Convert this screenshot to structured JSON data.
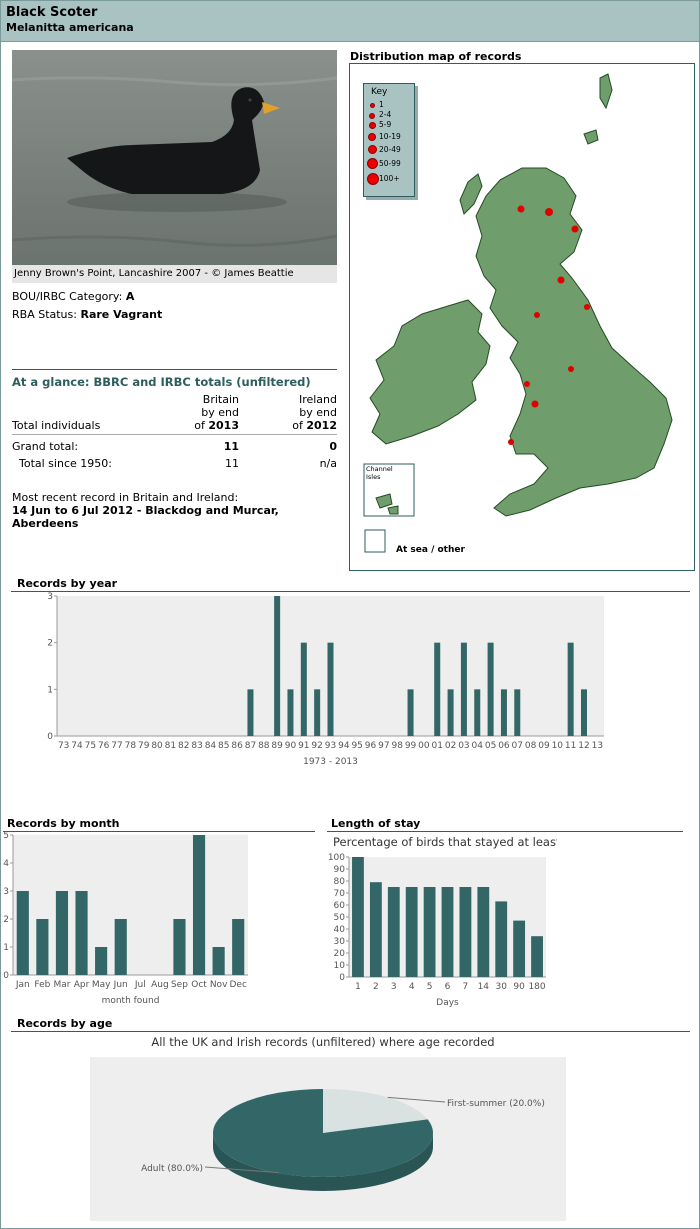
{
  "header": {
    "common_name": "Black Scoter",
    "scientific_name": "Melanitta americana"
  },
  "photo": {
    "caption": "Jenny Brown's Point, Lancashire 2007 - © James Beattie"
  },
  "category": {
    "label": "BOU/IRBC Category:",
    "value": "A"
  },
  "rba": {
    "label": "RBA Status:",
    "value": "Rare Vagrant"
  },
  "glance": {
    "title": "At a glance: BBRC and IRBC totals (unfiltered)",
    "col1": {
      "l1": "Britain",
      "l2": "by end",
      "l3": "of",
      "year": "2013"
    },
    "col2": {
      "l1": "Ireland",
      "l2": "by end",
      "l3": "of",
      "year": "2012"
    },
    "row_header": "Total individuals",
    "grand_label": "Grand total:",
    "grand_britain": "11",
    "grand_ireland": "0",
    "since_label": "Total since 1950:",
    "since_britain": "11",
    "since_ireland": "n/a",
    "recent_label": "Most recent record in Britain and Ireland:",
    "recent_value1": "14 Jun to 6 Jul 2012 - Blackdog and Murcar,",
    "recent_value2": "Aberdeens"
  },
  "map": {
    "title": "Distribution map of records",
    "key_title": "Key",
    "key_items": [
      "1",
      "2-4",
      "5-9",
      "10-19",
      "20-49",
      "50-99",
      "100+"
    ],
    "channel_label1": "Channel",
    "channel_label2": "Isles",
    "sea_label": "At sea / other",
    "land_color": "#6f9d6b",
    "record_color": "#e00000"
  },
  "chart_data": [
    {
      "id": "year",
      "type": "bar",
      "title": "Records by year",
      "xlabel": "1973 - 2013",
      "categories": [
        "73",
        "74",
        "75",
        "76",
        "77",
        "78",
        "79",
        "80",
        "81",
        "82",
        "83",
        "84",
        "85",
        "86",
        "87",
        "88",
        "89",
        "90",
        "91",
        "92",
        "93",
        "94",
        "95",
        "96",
        "97",
        "98",
        "99",
        "00",
        "01",
        "02",
        "03",
        "04",
        "05",
        "06",
        "07",
        "08",
        "09",
        "10",
        "11",
        "12",
        "13"
      ],
      "values": [
        0,
        0,
        0,
        0,
        0,
        0,
        0,
        0,
        0,
        0,
        0,
        0,
        0,
        0,
        1,
        0,
        3,
        1,
        2,
        1,
        2,
        0,
        0,
        0,
        0,
        0,
        1,
        0,
        2,
        1,
        2,
        1,
        2,
        1,
        1,
        0,
        0,
        0,
        2,
        1,
        0
      ],
      "ylim": [
        0,
        3
      ],
      "yticks": [
        "0",
        "1",
        "2",
        "3"
      ],
      "color": "#336666"
    },
    {
      "id": "month",
      "type": "bar",
      "title": "Records by month",
      "xlabel": "month found",
      "categories": [
        "Jan",
        "Feb",
        "Mar",
        "Apr",
        "May",
        "Jun",
        "Jul",
        "Aug",
        "Sep",
        "Oct",
        "Nov",
        "Dec"
      ],
      "values": [
        3,
        2,
        3,
        3,
        1,
        2,
        0,
        0,
        2,
        5,
        1,
        2
      ],
      "ylim": [
        0,
        5
      ],
      "yticks": [
        "0",
        "1",
        "2",
        "3",
        "4",
        "5"
      ],
      "color": "#336666"
    },
    {
      "id": "stay",
      "type": "bar",
      "title": "Length of stay",
      "subtitle": "Percentage of birds that stayed at least...",
      "xlabel": "Days",
      "categories": [
        "1",
        "2",
        "3",
        "4",
        "5",
        "6",
        "7",
        "14",
        "30",
        "90",
        "180"
      ],
      "values": [
        100,
        79,
        75,
        75,
        75,
        75,
        75,
        75,
        63,
        47,
        34
      ],
      "ylim": [
        0,
        100
      ],
      "yticks": [
        "0",
        "10",
        "20",
        "30",
        "40",
        "50",
        "60",
        "70",
        "80",
        "90",
        "100"
      ],
      "color": "#336666"
    },
    {
      "id": "age",
      "type": "pie",
      "title": "Records by age",
      "subtitle": "All the UK and Irish records (unfiltered) where age recorded",
      "slices": [
        {
          "label": "Adult (80.0%)",
          "value": 80.0,
          "color": "#336666"
        },
        {
          "label": "First-summer (20.0%)",
          "value": 20.0,
          "color": "#d9e1e1"
        }
      ]
    }
  ]
}
